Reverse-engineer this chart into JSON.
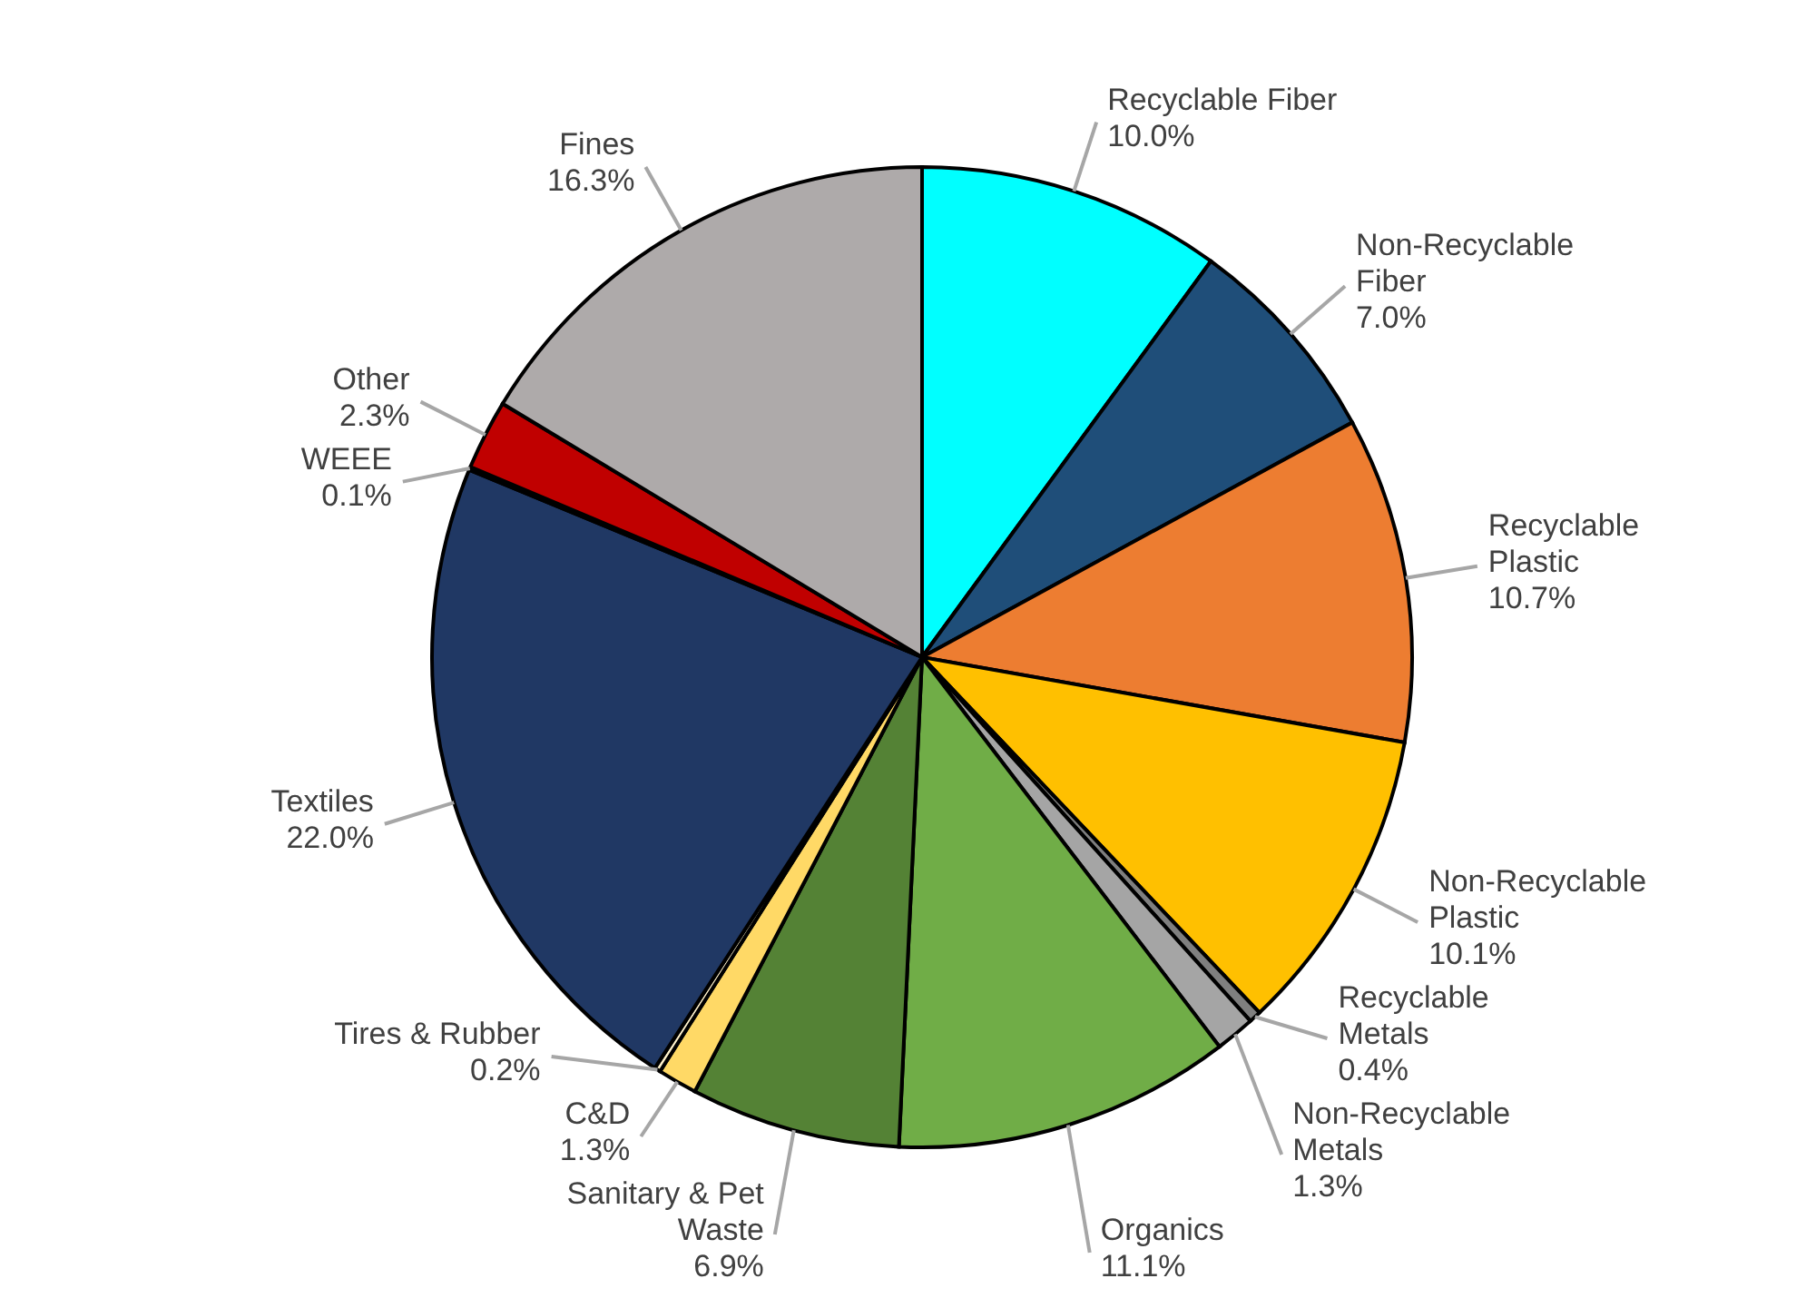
{
  "chart_data": {
    "type": "pie",
    "categories": [
      "Recyclable Fiber",
      "Non-Recyclable Fiber",
      "Recyclable Plastic",
      "Non-Recyclable Plastic",
      "Recyclable Metals",
      "Non-Recyclable Metals",
      "Organics",
      "Sanitary & Pet Waste",
      "C&D",
      "Tires & Rubber",
      "Textiles",
      "WEEE",
      "Other",
      "Fines"
    ],
    "values": [
      10.0,
      7.0,
      10.7,
      10.1,
      0.4,
      1.3,
      11.1,
      6.9,
      1.3,
      0.2,
      22.0,
      0.1,
      2.3,
      16.3
    ],
    "colors": [
      "#00ffff",
      "#1f4e79",
      "#ed7d31",
      "#ffc000",
      "#7f7f7f",
      "#a5a5a5",
      "#70ad47",
      "#548235",
      "#ffd966",
      "#fff2cc",
      "#203864",
      "#9dc3e6",
      "#c00000",
      "#aeaaaa"
    ],
    "value_labels": [
      "10.0%",
      "7.0%",
      "10.7%",
      "10.1%",
      "0.4%",
      "1.3%",
      "11.1%",
      "6.9%",
      "1.3%",
      "0.2%",
      "22.0%",
      "0.1%",
      "2.3%",
      "16.3%"
    ]
  }
}
